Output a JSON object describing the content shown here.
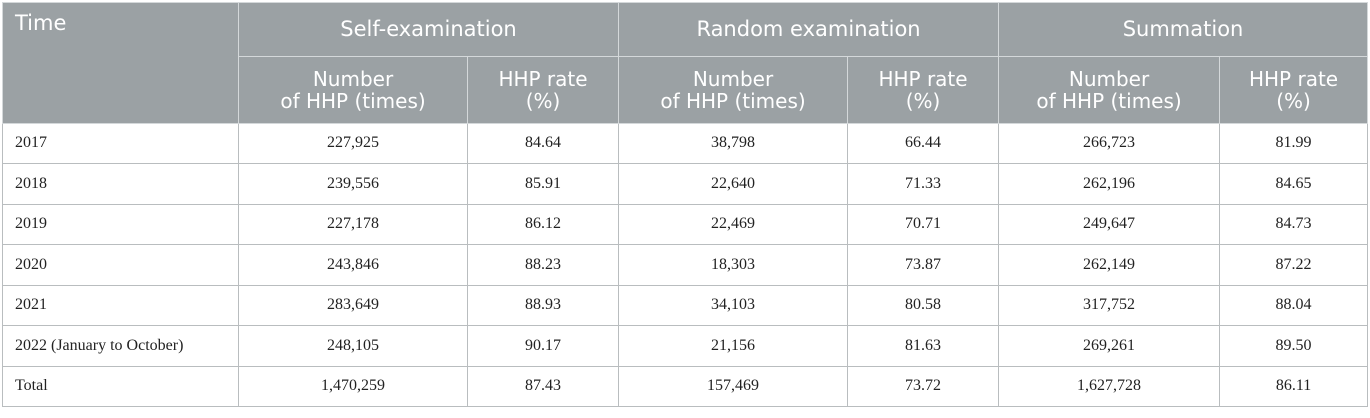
{
  "header": {
    "time": "Time",
    "groups": [
      "Self-examination",
      "Random examination",
      "Summation"
    ],
    "sub": {
      "count_line1": "Number",
      "count_line2": "of HHP (times)",
      "rate_line1": "HHP rate",
      "rate_line2": "(%)"
    }
  },
  "rows": [
    {
      "label": "2017",
      "v": [
        "227,925",
        "84.64",
        "38,798",
        "66.44",
        "266,723",
        "81.99"
      ]
    },
    {
      "label": "2018",
      "v": [
        "239,556",
        "85.91",
        "22,640",
        "71.33",
        "262,196",
        "84.65"
      ]
    },
    {
      "label": "2019",
      "v": [
        "227,178",
        "86.12",
        "22,469",
        "70.71",
        "249,647",
        "84.73"
      ]
    },
    {
      "label": "2020",
      "v": [
        "243,846",
        "88.23",
        "18,303",
        "73.87",
        "262,149",
        "87.22"
      ]
    },
    {
      "label": "2021",
      "v": [
        "283,649",
        "88.93",
        "34,103",
        "80.58",
        "317,752",
        "88.04"
      ]
    },
    {
      "label": "2022 (January to October)",
      "v": [
        "248,105",
        "90.17",
        "21,156",
        "81.63",
        "269,261",
        "89.50"
      ]
    },
    {
      "label": "Total",
      "v": [
        "1,470,259",
        "87.43",
        "157,469",
        "73.72",
        "1,627,728",
        "86.11"
      ]
    }
  ]
}
